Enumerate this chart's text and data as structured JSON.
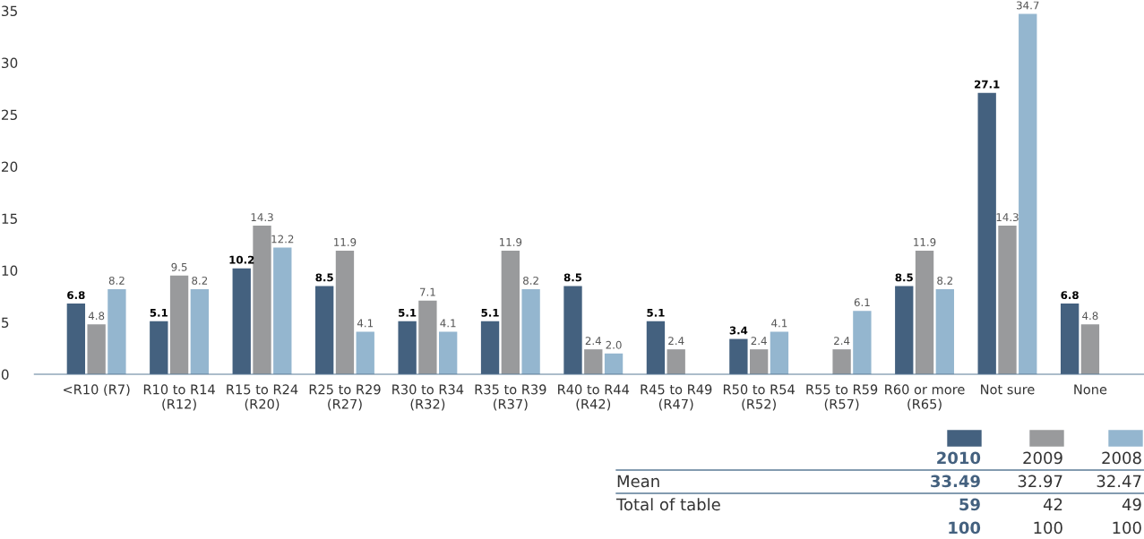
{
  "chart_data": {
    "type": "bar",
    "categories": [
      "<R10 (R7)",
      "R10 to R14\n(R12)",
      "R15 to R24\n(R20)",
      "R25 to R29\n(R27)",
      "R30 to R34\n(R32)",
      "R35 to R39\n(R37)",
      "R40 to R44\n(R42)",
      "R45 to R49\n(R47)",
      "R50 to R54\n(R52)",
      "R55 to R59\n(R57)",
      "R60 or more\n(R65)",
      "Not sure",
      "None"
    ],
    "series": [
      {
        "name": "2010",
        "color": "#44617f",
        "values": [
          6.8,
          5.1,
          10.2,
          8.5,
          5.1,
          5.1,
          8.5,
          5.1,
          3.4,
          null,
          8.5,
          27.1,
          6.8
        ],
        "value_labels": [
          "6.8",
          "5.1",
          "10.2",
          "8.5",
          "5.1",
          "5.1",
          "8.5",
          "5.1",
          "3.4",
          null,
          "8.5",
          "27.1",
          "6.8"
        ]
      },
      {
        "name": "2009",
        "color": "#999a9c",
        "values": [
          4.8,
          9.5,
          14.3,
          11.9,
          7.1,
          11.9,
          2.4,
          2.4,
          2.4,
          2.4,
          11.9,
          14.3,
          4.8
        ],
        "value_labels": [
          "4.8",
          "9.5",
          "14.3",
          "11.9",
          "7.1",
          "11.9",
          "2.4",
          "2.4",
          "2.4",
          "2.4",
          "11.9",
          "14.3",
          "4.8"
        ]
      },
      {
        "name": "2008",
        "color": "#94b6cf",
        "values": [
          8.2,
          8.2,
          12.2,
          4.1,
          4.1,
          8.2,
          2.0,
          null,
          4.1,
          6.1,
          8.2,
          34.7,
          null
        ],
        "value_labels": [
          "8.2",
          "8.2",
          "12.2",
          "4.1",
          "4.1",
          "8.2",
          "2.0",
          null,
          "4.1",
          "6.1",
          "8.2",
          "34.7",
          null
        ]
      }
    ],
    "ylim": [
      0,
      35
    ],
    "yticks": [
      0,
      5,
      10,
      15,
      20,
      25,
      30,
      35
    ],
    "legend": "bottom right",
    "grid": false,
    "annotations": [
      "Mean",
      "33.49",
      "32.97",
      "32.47",
      "Total of table",
      "59",
      "42",
      "49",
      "100",
      "100",
      "100"
    ]
  }
}
